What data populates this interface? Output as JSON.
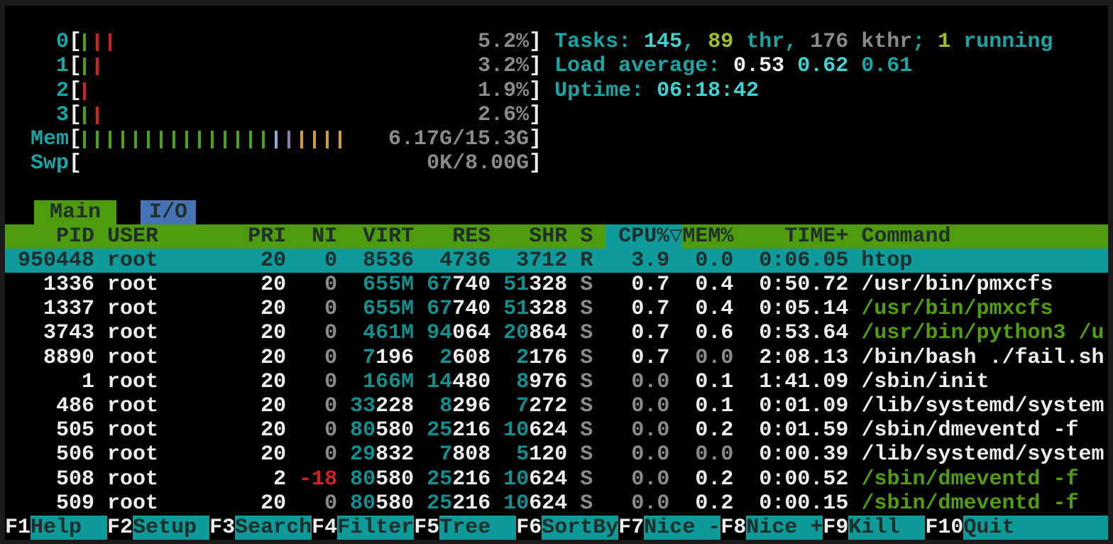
{
  "palette": {
    "screen_bg": "#000000",
    "window_border": "#1b1b1b",
    "white": "#ededed",
    "gray": "#8a8a8a",
    "teal_text": "#17a5a5",
    "teal_num": "#128f8f",
    "cyan_bright": "#3fd2d2",
    "green_bold": "#a2c026",
    "green_cmd": "#519e0c",
    "red": "#d42020",
    "dark_on_color": "#1f2d2b",
    "header_bg": "#4e9c0d",
    "tab_io_bg": "#4673b5",
    "selected_bg": "#0f9b9b",
    "fkey_bg": "#0e9a98",
    "bar_green": "#44a414",
    "bar_red": "#d01f1f",
    "bar_blue": "#85aede",
    "bar_violet": "#9d74b8",
    "bar_yellow": "#d4a017"
  },
  "meters": [
    {
      "label": "0",
      "value": "5.2%",
      "bars": [
        "g",
        "r",
        "r"
      ]
    },
    {
      "label": "1",
      "value": "3.2%",
      "bars": [
        "g",
        "r"
      ]
    },
    {
      "label": "2",
      "value": "1.9%",
      "bars": [
        "r"
      ]
    },
    {
      "label": "3",
      "value": "2.6%",
      "bars": [
        "g",
        "r"
      ]
    },
    {
      "label": "Mem",
      "value": "6.17G/15.3G",
      "bars": [
        "g",
        "g",
        "g",
        "g",
        "g",
        "g",
        "g",
        "g",
        "g",
        "g",
        "g",
        "g",
        "g",
        "g",
        "g",
        "b",
        "v",
        "y",
        "y",
        "y",
        "y"
      ]
    },
    {
      "label": "Swp",
      "value": "0K/8.00G",
      "bars": []
    }
  ],
  "info_lines": [
    {
      "name": "tasks-summary",
      "segments": [
        [
          "Tasks: ",
          "tl"
        ],
        [
          "145",
          "c"
        ],
        [
          ", ",
          "tl"
        ],
        [
          "89",
          "y"
        ],
        [
          " thr, ",
          "tl"
        ],
        [
          "176 kthr",
          "g"
        ],
        [
          "; ",
          "tl"
        ],
        [
          "1",
          "y"
        ],
        [
          " running",
          "tl"
        ]
      ]
    },
    {
      "name": "load-average",
      "segments": [
        [
          "Load average: ",
          "tl"
        ],
        [
          "0.53 ",
          "w"
        ],
        [
          "0.62 ",
          "c"
        ],
        [
          "0.61",
          "tl"
        ]
      ]
    },
    {
      "name": "uptime",
      "segments": [
        [
          "Uptime: ",
          "tl"
        ],
        [
          "06:18:42",
          "c"
        ]
      ]
    }
  ],
  "tabs": [
    {
      "label": "Main",
      "active": true
    },
    {
      "label": "I/O",
      "active": false
    }
  ],
  "table": {
    "sort_key": "cpu",
    "headers": {
      "pid": "PID",
      "user": "USER",
      "pri": "PRI",
      "ni": "NI",
      "virt": "VIRT",
      "res": "RES",
      "shr": "SHR",
      "s": "S",
      "cpu": "CPU%",
      "arrow": "▽",
      "mem": "MEM%",
      "time": "TIME+",
      "cmd": "Command"
    },
    "rows": [
      {
        "selected": true,
        "cells": {
          "pid": [
            [
              "950448",
              "d"
            ]
          ],
          "user": [
            [
              "root",
              "d"
            ]
          ],
          "pri": [
            [
              "20",
              "d"
            ]
          ],
          "ni": [
            [
              "0",
              "d"
            ]
          ],
          "virt": [
            [
              "8536",
              "d"
            ]
          ],
          "res": [
            [
              "4736",
              "d"
            ]
          ],
          "shr": [
            [
              "3712",
              "d"
            ]
          ],
          "s": [
            [
              "R",
              "d"
            ]
          ],
          "cpu": [
            [
              "3.9",
              "d"
            ]
          ],
          "mem": [
            [
              "0.0",
              "d"
            ]
          ],
          "time": [
            [
              "0:06.05",
              "d"
            ]
          ],
          "cmd": [
            [
              "htop",
              "d"
            ]
          ]
        }
      },
      {
        "cells": {
          "pid": [
            [
              "1336",
              "w"
            ]
          ],
          "user": [
            [
              "root",
              "w"
            ]
          ],
          "pri": [
            [
              "20",
              "w"
            ]
          ],
          "ni": [
            [
              "0",
              "g"
            ]
          ],
          "virt": [
            [
              "655M",
              "tn"
            ]
          ],
          "res": [
            [
              "67",
              "tn"
            ],
            [
              "740",
              "w"
            ]
          ],
          "shr": [
            [
              "51",
              "tn"
            ],
            [
              "328",
              "w"
            ]
          ],
          "s": [
            [
              "S",
              "g"
            ]
          ],
          "cpu": [
            [
              "0.7",
              "w"
            ]
          ],
          "mem": [
            [
              "0.4",
              "w"
            ]
          ],
          "time": [
            [
              "0:50.72",
              "w"
            ]
          ],
          "cmd": [
            [
              "/usr/bin/pmxcfs",
              "w"
            ]
          ]
        }
      },
      {
        "cells": {
          "pid": [
            [
              "1337",
              "w"
            ]
          ],
          "user": [
            [
              "root",
              "w"
            ]
          ],
          "pri": [
            [
              "20",
              "w"
            ]
          ],
          "ni": [
            [
              "0",
              "g"
            ]
          ],
          "virt": [
            [
              "655M",
              "tn"
            ]
          ],
          "res": [
            [
              "67",
              "tn"
            ],
            [
              "740",
              "w"
            ]
          ],
          "shr": [
            [
              "51",
              "tn"
            ],
            [
              "328",
              "w"
            ]
          ],
          "s": [
            [
              "S",
              "g"
            ]
          ],
          "cpu": [
            [
              "0.7",
              "w"
            ]
          ],
          "mem": [
            [
              "0.4",
              "w"
            ]
          ],
          "time": [
            [
              "0:05.14",
              "w"
            ]
          ],
          "cmd": [
            [
              "/usr/bin/pmxcfs",
              "gn"
            ]
          ]
        }
      },
      {
        "cells": {
          "pid": [
            [
              "3743",
              "w"
            ]
          ],
          "user": [
            [
              "root",
              "w"
            ]
          ],
          "pri": [
            [
              "20",
              "w"
            ]
          ],
          "ni": [
            [
              "0",
              "g"
            ]
          ],
          "virt": [
            [
              "461M",
              "tn"
            ]
          ],
          "res": [
            [
              "94",
              "tn"
            ],
            [
              "064",
              "w"
            ]
          ],
          "shr": [
            [
              "20",
              "tn"
            ],
            [
              "864",
              "w"
            ]
          ],
          "s": [
            [
              "S",
              "g"
            ]
          ],
          "cpu": [
            [
              "0.7",
              "w"
            ]
          ],
          "mem": [
            [
              "0.6",
              "w"
            ]
          ],
          "time": [
            [
              "0:53.64",
              "w"
            ]
          ],
          "cmd": [
            [
              "/usr/bin/python3 /u",
              "gn"
            ]
          ]
        }
      },
      {
        "cells": {
          "pid": [
            [
              "8890",
              "w"
            ]
          ],
          "user": [
            [
              "root",
              "w"
            ]
          ],
          "pri": [
            [
              "20",
              "w"
            ]
          ],
          "ni": [
            [
              "0",
              "g"
            ]
          ],
          "virt": [
            [
              "7",
              "tn"
            ],
            [
              "196",
              "w"
            ]
          ],
          "res": [
            [
              "2",
              "tn"
            ],
            [
              "608",
              "w"
            ]
          ],
          "shr": [
            [
              "2",
              "tn"
            ],
            [
              "176",
              "w"
            ]
          ],
          "s": [
            [
              "S",
              "g"
            ]
          ],
          "cpu": [
            [
              "0.7",
              "w"
            ]
          ],
          "mem": [
            [
              "0.0",
              "g"
            ]
          ],
          "time": [
            [
              "2:08.13",
              "w"
            ]
          ],
          "cmd": [
            [
              "/bin/bash ./fail.sh",
              "w"
            ]
          ]
        }
      },
      {
        "cells": {
          "pid": [
            [
              "1",
              "w"
            ]
          ],
          "user": [
            [
              "root",
              "w"
            ]
          ],
          "pri": [
            [
              "20",
              "w"
            ]
          ],
          "ni": [
            [
              "0",
              "g"
            ]
          ],
          "virt": [
            [
              "166M",
              "tn"
            ]
          ],
          "res": [
            [
              "14",
              "tn"
            ],
            [
              "480",
              "w"
            ]
          ],
          "shr": [
            [
              "8",
              "tn"
            ],
            [
              "976",
              "w"
            ]
          ],
          "s": [
            [
              "S",
              "g"
            ]
          ],
          "cpu": [
            [
              "0.0",
              "g"
            ]
          ],
          "mem": [
            [
              "0.1",
              "w"
            ]
          ],
          "time": [
            [
              "1:41.09",
              "w"
            ]
          ],
          "cmd": [
            [
              "/sbin/init",
              "w"
            ]
          ]
        }
      },
      {
        "cells": {
          "pid": [
            [
              "486",
              "w"
            ]
          ],
          "user": [
            [
              "root",
              "w"
            ]
          ],
          "pri": [
            [
              "20",
              "w"
            ]
          ],
          "ni": [
            [
              "0",
              "g"
            ]
          ],
          "virt": [
            [
              "33",
              "tn"
            ],
            [
              "228",
              "w"
            ]
          ],
          "res": [
            [
              "8",
              "tn"
            ],
            [
              "296",
              "w"
            ]
          ],
          "shr": [
            [
              "7",
              "tn"
            ],
            [
              "272",
              "w"
            ]
          ],
          "s": [
            [
              "S",
              "g"
            ]
          ],
          "cpu": [
            [
              "0.0",
              "g"
            ]
          ],
          "mem": [
            [
              "0.1",
              "w"
            ]
          ],
          "time": [
            [
              "0:01.09",
              "w"
            ]
          ],
          "cmd": [
            [
              "/lib/systemd/system",
              "w"
            ]
          ]
        }
      },
      {
        "cells": {
          "pid": [
            [
              "505",
              "w"
            ]
          ],
          "user": [
            [
              "root",
              "w"
            ]
          ],
          "pri": [
            [
              "20",
              "w"
            ]
          ],
          "ni": [
            [
              "0",
              "g"
            ]
          ],
          "virt": [
            [
              "80",
              "tn"
            ],
            [
              "580",
              "w"
            ]
          ],
          "res": [
            [
              "25",
              "tn"
            ],
            [
              "216",
              "w"
            ]
          ],
          "shr": [
            [
              "10",
              "tn"
            ],
            [
              "624",
              "w"
            ]
          ],
          "s": [
            [
              "S",
              "g"
            ]
          ],
          "cpu": [
            [
              "0.0",
              "g"
            ]
          ],
          "mem": [
            [
              "0.2",
              "w"
            ]
          ],
          "time": [
            [
              "0:01.59",
              "w"
            ]
          ],
          "cmd": [
            [
              "/sbin/dmeventd -f",
              "w"
            ]
          ]
        }
      },
      {
        "cells": {
          "pid": [
            [
              "506",
              "w"
            ]
          ],
          "user": [
            [
              "root",
              "w"
            ]
          ],
          "pri": [
            [
              "20",
              "w"
            ]
          ],
          "ni": [
            [
              "0",
              "g"
            ]
          ],
          "virt": [
            [
              "29",
              "tn"
            ],
            [
              "832",
              "w"
            ]
          ],
          "res": [
            [
              "7",
              "tn"
            ],
            [
              "808",
              "w"
            ]
          ],
          "shr": [
            [
              "5",
              "tn"
            ],
            [
              "120",
              "w"
            ]
          ],
          "s": [
            [
              "S",
              "g"
            ]
          ],
          "cpu": [
            [
              "0.0",
              "g"
            ]
          ],
          "mem": [
            [
              "0.0",
              "g"
            ]
          ],
          "time": [
            [
              "0:00.39",
              "w"
            ]
          ],
          "cmd": [
            [
              "/lib/systemd/system",
              "w"
            ]
          ]
        }
      },
      {
        "cells": {
          "pid": [
            [
              "508",
              "w"
            ]
          ],
          "user": [
            [
              "root",
              "w"
            ]
          ],
          "pri": [
            [
              "2",
              "w"
            ]
          ],
          "ni": [
            [
              "-18",
              "r"
            ]
          ],
          "virt": [
            [
              "80",
              "tn"
            ],
            [
              "580",
              "w"
            ]
          ],
          "res": [
            [
              "25",
              "tn"
            ],
            [
              "216",
              "w"
            ]
          ],
          "shr": [
            [
              "10",
              "tn"
            ],
            [
              "624",
              "w"
            ]
          ],
          "s": [
            [
              "S",
              "g"
            ]
          ],
          "cpu": [
            [
              "0.0",
              "g"
            ]
          ],
          "mem": [
            [
              "0.2",
              "w"
            ]
          ],
          "time": [
            [
              "0:00.52",
              "w"
            ]
          ],
          "cmd": [
            [
              "/sbin/dmeventd -f",
              "gn"
            ]
          ]
        }
      },
      {
        "cells": {
          "pid": [
            [
              "509",
              "w"
            ]
          ],
          "user": [
            [
              "root",
              "w"
            ]
          ],
          "pri": [
            [
              "20",
              "w"
            ]
          ],
          "ni": [
            [
              "0",
              "g"
            ]
          ],
          "virt": [
            [
              "80",
              "tn"
            ],
            [
              "580",
              "w"
            ]
          ],
          "res": [
            [
              "25",
              "tn"
            ],
            [
              "216",
              "w"
            ]
          ],
          "shr": [
            [
              "10",
              "tn"
            ],
            [
              "624",
              "w"
            ]
          ],
          "s": [
            [
              "S",
              "g"
            ]
          ],
          "cpu": [
            [
              "0.0",
              "g"
            ]
          ],
          "mem": [
            [
              "0.2",
              "w"
            ]
          ],
          "time": [
            [
              "0:00.15",
              "w"
            ]
          ],
          "cmd": [
            [
              "/sbin/dmeventd -f",
              "gn"
            ]
          ]
        }
      }
    ]
  },
  "fkeys": [
    {
      "key": "F1",
      "label": "Help"
    },
    {
      "key": "F2",
      "label": "Setup"
    },
    {
      "key": "F3",
      "label": "Search"
    },
    {
      "key": "F4",
      "label": "Filter"
    },
    {
      "key": "F5",
      "label": "Tree"
    },
    {
      "key": "F6",
      "label": "SortBy"
    },
    {
      "key": "F7",
      "label": "Nice -"
    },
    {
      "key": "F8",
      "label": "Nice +"
    },
    {
      "key": "F9",
      "label": "Kill"
    },
    {
      "key": "F10",
      "label": "Quit"
    }
  ]
}
